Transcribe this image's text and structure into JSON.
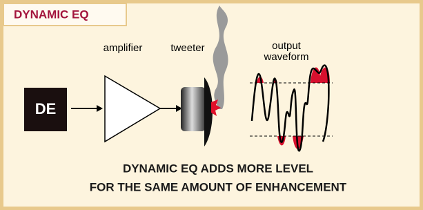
{
  "header": {
    "title": "DYNAMIC EQ"
  },
  "labels": {
    "source": "DE",
    "amplifier": "amplifier",
    "tweeter": "tweeter",
    "waveform": [
      "output",
      "waveform"
    ]
  },
  "caption": [
    "DYNAMIC EQ ADDS MORE LEVEL",
    "FOR THE SAME AMOUNT OF ENHANCEMENT"
  ]
}
